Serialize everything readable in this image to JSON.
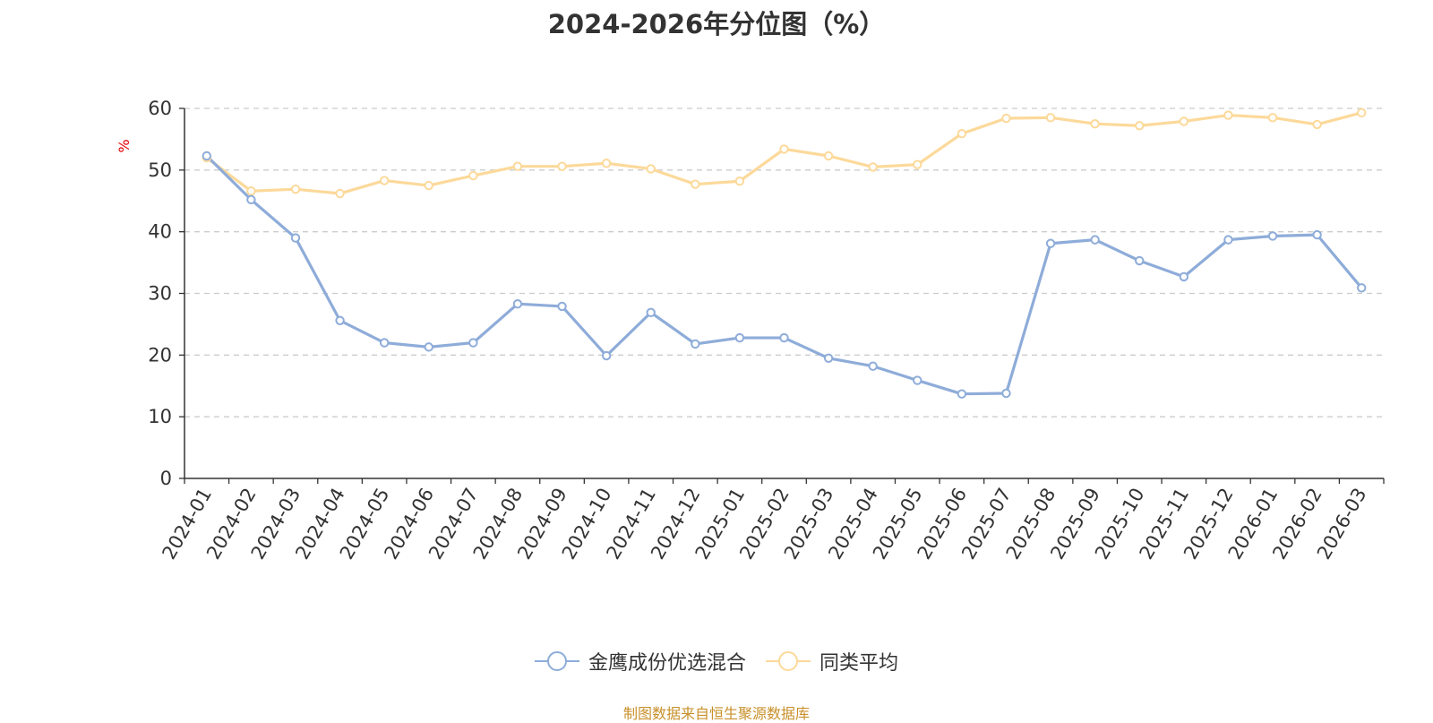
{
  "chart_data": {
    "type": "line",
    "title": "2024-2026年分位图（%）",
    "ylabel": "%",
    "xlabel": "",
    "ylim": [
      0,
      60
    ],
    "yticks": [
      0,
      10,
      20,
      30,
      40,
      50,
      60
    ],
    "grid": true,
    "legend_position": "bottom",
    "categories": [
      "2024-01",
      "2024-02",
      "2024-03",
      "2024-04",
      "2024-05",
      "2024-06",
      "2024-07",
      "2024-08",
      "2024-09",
      "2024-10",
      "2024-11",
      "2024-12",
      "2025-01",
      "2025-02",
      "2025-03",
      "2025-04",
      "2025-05",
      "2025-06",
      "2025-07",
      "2025-08",
      "2025-09",
      "2025-10",
      "2025-11",
      "2025-12",
      "2026-01",
      "2026-02",
      "2026-03"
    ],
    "series": [
      {
        "name": "金鹰成份优选混合",
        "color": "#8eacd9",
        "values": [
          52.3,
          45.2,
          39.0,
          25.6,
          22.0,
          21.3,
          22.0,
          28.3,
          27.9,
          19.9,
          26.9,
          21.8,
          22.8,
          22.8,
          19.5,
          18.2,
          15.9,
          13.7,
          13.8,
          38.1,
          38.7,
          35.3,
          32.7,
          38.7,
          39.3,
          39.5,
          30.9
        ]
      },
      {
        "name": "同类平均",
        "color": "#fcd99a",
        "values": [
          52.0,
          46.6,
          46.9,
          46.2,
          48.3,
          47.5,
          49.1,
          50.6,
          50.6,
          51.1,
          50.2,
          47.7,
          48.2,
          53.4,
          52.3,
          50.5,
          50.9,
          55.9,
          58.4,
          58.5,
          57.5,
          57.2,
          57.9,
          58.9,
          58.5,
          57.4,
          59.3
        ]
      }
    ]
  },
  "source_note": "制图数据来自恒生聚源数据库"
}
